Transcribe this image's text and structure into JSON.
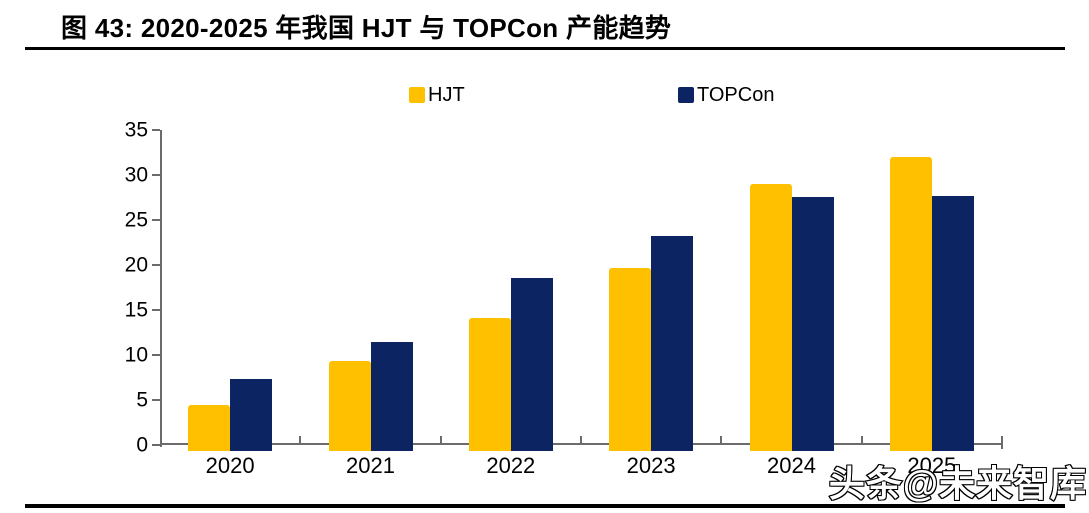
{
  "figure": {
    "title": "图 43:  2020-2025 年我国 HJT 与 TOPCon 产能趋势"
  },
  "chart_data": {
    "type": "bar",
    "title": "2020-2025 年我国 HJT 与 TOPCon 产能趋势",
    "categories": [
      "2020",
      "2021",
      "2022",
      "2023",
      "2024",
      "2025"
    ],
    "series": [
      {
        "name": "HJT",
        "color": "#FFC000",
        "values": [
          4.4,
          9.3,
          14.1,
          19.7,
          29.0,
          32.0
        ]
      },
      {
        "name": "TOPCon",
        "color": "#0D2463",
        "values": [
          7.3,
          11.5,
          18.6,
          23.2,
          27.6,
          27.7
        ]
      }
    ],
    "xlabel": "",
    "ylabel": "",
    "ylim": [
      0,
      35
    ],
    "yticks": [
      0,
      5,
      10,
      15,
      20,
      25,
      30,
      35
    ],
    "grid": false,
    "legend_position": "top-center",
    "axis_color": "#6b6b6b",
    "text_color": "#000000"
  },
  "watermark": {
    "text": "头条@未来智库"
  }
}
